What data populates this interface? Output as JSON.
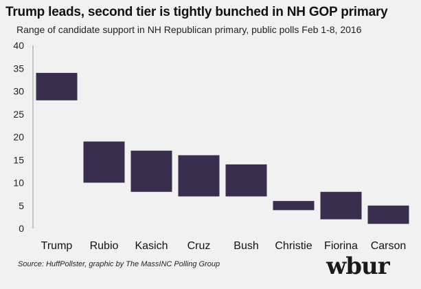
{
  "chart_data": {
    "type": "bar",
    "subtype": "floating-range",
    "title": "Trump leads, second tier is tightly bunched in NH GOP primary",
    "subtitle": "Range of candidate support in NH Republican primary, public polls Feb 1-8, 2016",
    "categories": [
      "Trump",
      "Rubio",
      "Kasich",
      "Cruz",
      "Bush",
      "Christie",
      "Fiorina",
      "Carson"
    ],
    "series": [
      {
        "low": [
          28,
          10,
          8,
          7,
          7,
          4,
          2,
          1
        ],
        "high": [
          34,
          19,
          17,
          16,
          14,
          6,
          8,
          5
        ]
      }
    ],
    "ylim": [
      0,
      40
    ],
    "yticks": [
      0,
      5,
      10,
      15,
      20,
      25,
      30,
      35,
      40
    ],
    "grid": false,
    "bar_color": "#3a2e4e"
  },
  "source": "Source: HuffPollster, graphic by The MassINC Polling Group",
  "brand": "wbur"
}
